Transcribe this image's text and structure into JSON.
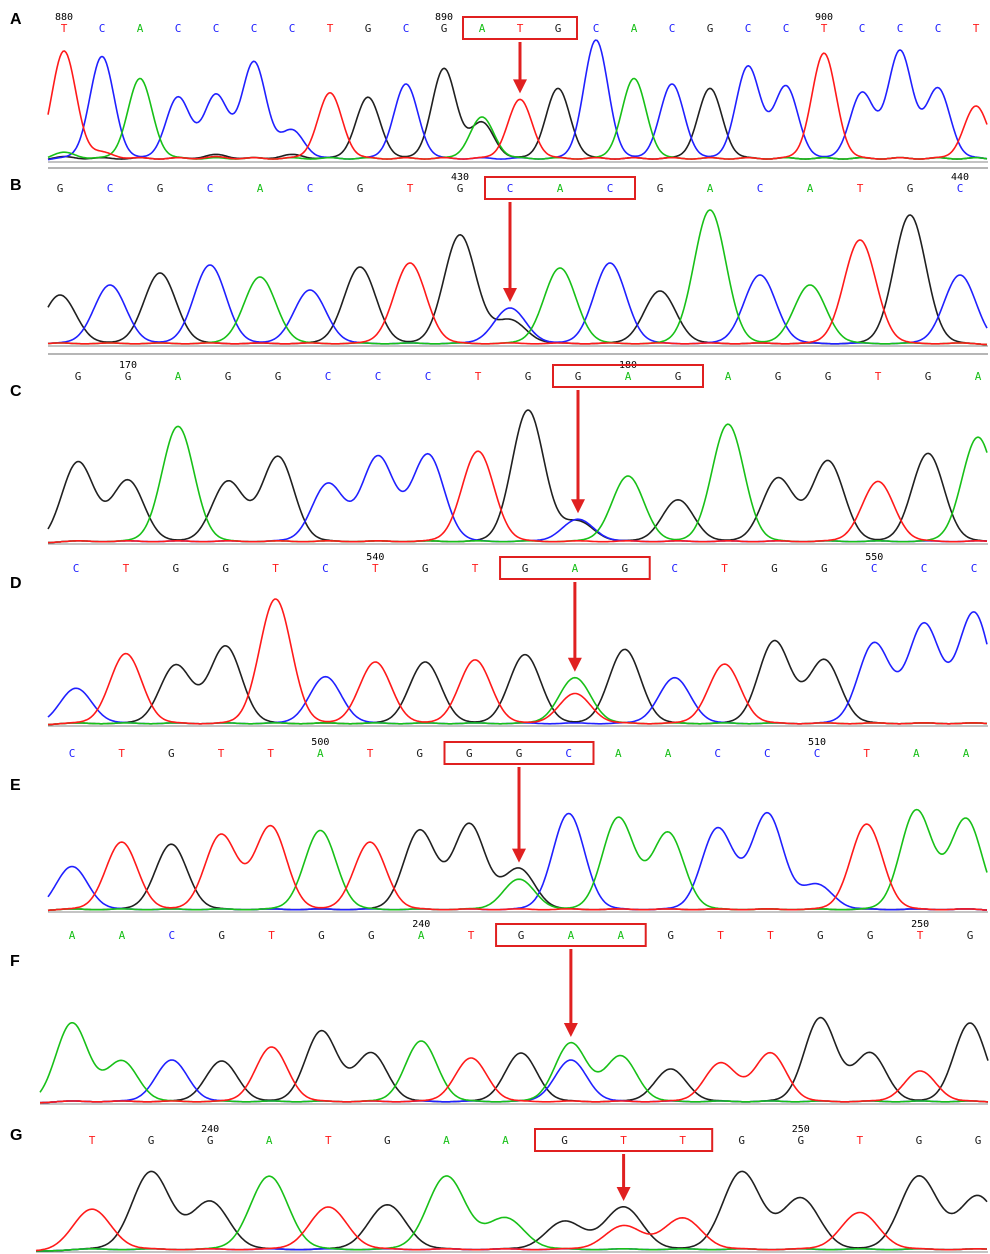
{
  "colors": {
    "A": "#18c018",
    "C": "#2020ff",
    "G": "#202020",
    "T": "#ff1a1a",
    "box": "#e02020",
    "baseline": "#8a8a8a"
  },
  "panels": [
    {
      "letter": "A",
      "bases": [
        "T",
        "C",
        "A",
        "C",
        "C",
        "C",
        "C",
        "T",
        "G",
        "C",
        "G",
        "A",
        "T",
        "G",
        "C",
        "A",
        "C",
        "G",
        "C",
        "C",
        "T",
        "C",
        "C",
        "C",
        "T"
      ],
      "positions": [
        {
          "label": "880",
          "index": 0
        },
        {
          "label": "890",
          "index": 10
        },
        {
          "label": "900",
          "index": 20
        }
      ],
      "highlight": [
        11,
        13
      ],
      "arrow_index": 12,
      "peaks": [
        {
          "A": 0.08,
          "C": 0.03,
          "G": 0.04,
          "T": 1.0
        },
        {
          "A": 0.03,
          "C": 0.95,
          "G": 0.03,
          "T": 0.08
        },
        {
          "A": 0.75,
          "C": 0.03,
          "G": 0.03,
          "T": 0.03
        },
        {
          "A": 0.03,
          "C": 0.58,
          "G": 0.03,
          "T": 0.03
        },
        {
          "A": 0.03,
          "C": 0.6,
          "G": 0.06,
          "T": 0.04
        },
        {
          "A": 0.03,
          "C": 0.9,
          "G": 0.03,
          "T": 0.03
        },
        {
          "A": 0.03,
          "C": 0.28,
          "G": 0.06,
          "T": 0.03
        },
        {
          "A": 0.03,
          "C": 0.03,
          "G": 0.03,
          "T": 0.62
        },
        {
          "A": 0.03,
          "C": 0.03,
          "G": 0.58,
          "T": 0.03
        },
        {
          "A": 0.03,
          "C": 0.7,
          "G": 0.03,
          "T": 0.03
        },
        {
          "A": 0.03,
          "C": 0.03,
          "G": 0.84,
          "T": 0.03
        },
        {
          "A": 0.4,
          "C": 0.03,
          "G": 0.35,
          "T": 0.03
        },
        {
          "A": 0.03,
          "C": 0.03,
          "G": 0.03,
          "T": 0.56
        },
        {
          "A": 0.03,
          "C": 0.03,
          "G": 0.66,
          "T": 0.03
        },
        {
          "A": 0.03,
          "C": 1.1,
          "G": 0.03,
          "T": 0.03
        },
        {
          "A": 0.75,
          "C": 0.03,
          "G": 0.03,
          "T": 0.03
        },
        {
          "A": 0.03,
          "C": 0.7,
          "G": 0.03,
          "T": 0.03
        },
        {
          "A": 0.03,
          "C": 0.03,
          "G": 0.66,
          "T": 0.03
        },
        {
          "A": 0.03,
          "C": 0.86,
          "G": 0.03,
          "T": 0.03
        },
        {
          "A": 0.03,
          "C": 0.68,
          "G": 0.03,
          "T": 0.03
        },
        {
          "A": 0.03,
          "C": 0.03,
          "G": 0.03,
          "T": 0.98
        },
        {
          "A": 0.03,
          "C": 0.62,
          "G": 0.03,
          "T": 0.03
        },
        {
          "A": 0.03,
          "C": 1.0,
          "G": 0.03,
          "T": 0.03
        },
        {
          "A": 0.03,
          "C": 0.66,
          "G": 0.03,
          "T": 0.03
        },
        {
          "A": 0.03,
          "C": 0.03,
          "G": 0.03,
          "T": 0.5
        }
      ]
    },
    {
      "letter": "B",
      "bases": [
        "G",
        "C",
        "G",
        "C",
        "A",
        "C",
        "G",
        "T",
        "G",
        "C",
        "A",
        "C",
        "G",
        "A",
        "C",
        "A",
        "T",
        "G",
        "C"
      ],
      "positions": [
        {
          "label": "430",
          "index": 8
        },
        {
          "label": "440",
          "index": 18
        }
      ],
      "highlight": [
        9,
        11
      ],
      "arrow_index": 9,
      "peaks": [
        {
          "A": 0.02,
          "C": 0.02,
          "G": 0.5,
          "T": 0.02
        },
        {
          "A": 0.02,
          "C": 0.6,
          "G": 0.02,
          "T": 0.02
        },
        {
          "A": 0.02,
          "C": 0.02,
          "G": 0.72,
          "T": 0.02
        },
        {
          "A": 0.02,
          "C": 0.8,
          "G": 0.02,
          "T": 0.02
        },
        {
          "A": 0.68,
          "C": 0.02,
          "G": 0.02,
          "T": 0.02
        },
        {
          "A": 0.02,
          "C": 0.55,
          "G": 0.02,
          "T": 0.02
        },
        {
          "A": 0.02,
          "C": 0.02,
          "G": 0.78,
          "T": 0.02
        },
        {
          "A": 0.02,
          "C": 0.02,
          "G": 0.02,
          "T": 0.82
        },
        {
          "A": 0.02,
          "C": 0.02,
          "G": 1.1,
          "T": 0.02
        },
        {
          "A": 0.02,
          "C": 0.37,
          "G": 0.25,
          "T": 0.02
        },
        {
          "A": 0.77,
          "C": 0.02,
          "G": 0.02,
          "T": 0.02
        },
        {
          "A": 0.02,
          "C": 0.82,
          "G": 0.02,
          "T": 0.02
        },
        {
          "A": 0.02,
          "C": 0.02,
          "G": 0.54,
          "T": 0.02
        },
        {
          "A": 1.35,
          "C": 0.02,
          "G": 0.02,
          "T": 0.02
        },
        {
          "A": 0.02,
          "C": 0.7,
          "G": 0.02,
          "T": 0.02
        },
        {
          "A": 0.6,
          "C": 0.02,
          "G": 0.02,
          "T": 0.02
        },
        {
          "A": 0.02,
          "C": 0.02,
          "G": 0.02,
          "T": 1.05
        },
        {
          "A": 0.02,
          "C": 0.02,
          "G": 1.3,
          "T": 0.02
        },
        {
          "A": 0.02,
          "C": 0.7,
          "G": 0.02,
          "T": 0.02
        }
      ]
    },
    {
      "letter": "C",
      "bases": [
        "G",
        "G",
        "A",
        "G",
        "G",
        "C",
        "C",
        "C",
        "T",
        "G",
        "G",
        "A",
        "G",
        "A",
        "G",
        "G",
        "T",
        "G",
        "A"
      ],
      "positions": [
        {
          "label": "170",
          "index": 1
        },
        {
          "label": "180",
          "index": 11
        }
      ],
      "highlight": [
        10,
        12
      ],
      "arrow_index": 10,
      "peaks": [
        {
          "A": 0.02,
          "C": 0.02,
          "G": 0.75,
          "T": 0.02
        },
        {
          "A": 0.02,
          "C": 0.02,
          "G": 0.58,
          "T": 0.02
        },
        {
          "A": 1.08,
          "C": 0.02,
          "G": 0.02,
          "T": 0.02
        },
        {
          "A": 0.02,
          "C": 0.02,
          "G": 0.57,
          "T": 0.02
        },
        {
          "A": 0.02,
          "C": 0.02,
          "G": 0.8,
          "T": 0.02
        },
        {
          "A": 0.02,
          "C": 0.55,
          "G": 0.02,
          "T": 0.02
        },
        {
          "A": 0.02,
          "C": 0.8,
          "G": 0.02,
          "T": 0.02
        },
        {
          "A": 0.02,
          "C": 0.82,
          "G": 0.02,
          "T": 0.02
        },
        {
          "A": 0.02,
          "C": 0.02,
          "G": 0.02,
          "T": 0.85
        },
        {
          "A": 0.02,
          "C": 0.02,
          "G": 1.23,
          "T": 0.02
        },
        {
          "A": 0.02,
          "C": 0.22,
          "G": 0.2,
          "T": 0.02
        },
        {
          "A": 0.62,
          "C": 0.02,
          "G": 0.02,
          "T": 0.02
        },
        {
          "A": 0.02,
          "C": 0.02,
          "G": 0.4,
          "T": 0.02
        },
        {
          "A": 1.1,
          "C": 0.02,
          "G": 0.02,
          "T": 0.02
        },
        {
          "A": 0.02,
          "C": 0.02,
          "G": 0.6,
          "T": 0.02
        },
        {
          "A": 0.02,
          "C": 0.02,
          "G": 0.76,
          "T": 0.02
        },
        {
          "A": 0.02,
          "C": 0.02,
          "G": 0.02,
          "T": 0.57
        },
        {
          "A": 0.02,
          "C": 0.02,
          "G": 0.83,
          "T": 0.02
        },
        {
          "A": 0.98,
          "C": 0.02,
          "G": 0.02,
          "T": 0.02
        }
      ]
    },
    {
      "letter": "D",
      "bases": [
        "C",
        "T",
        "G",
        "G",
        "T",
        "C",
        "T",
        "G",
        "T",
        "G",
        "A",
        "G",
        "C",
        "T",
        "G",
        "G",
        "C",
        "C",
        "C"
      ],
      "positions": [
        {
          "label": "540",
          "index": 6
        },
        {
          "label": "550",
          "index": 16
        }
      ],
      "highlight": [
        9,
        11
      ],
      "arrow_index": 10,
      "peaks": [
        {
          "A": 0.02,
          "C": 0.35,
          "G": 0.02,
          "T": 0.02
        },
        {
          "A": 0.02,
          "C": 0.02,
          "G": 0.02,
          "T": 0.68
        },
        {
          "A": 0.02,
          "C": 0.02,
          "G": 0.57,
          "T": 0.02
        },
        {
          "A": 0.02,
          "C": 0.02,
          "G": 0.75,
          "T": 0.02
        },
        {
          "A": 0.02,
          "C": 0.02,
          "G": 0.02,
          "T": 1.2
        },
        {
          "A": 0.02,
          "C": 0.46,
          "G": 0.02,
          "T": 0.02
        },
        {
          "A": 0.02,
          "C": 0.02,
          "G": 0.02,
          "T": 0.6
        },
        {
          "A": 0.02,
          "C": 0.02,
          "G": 0.6,
          "T": 0.02
        },
        {
          "A": 0.02,
          "C": 0.02,
          "G": 0.02,
          "T": 0.62
        },
        {
          "A": 0.02,
          "C": 0.02,
          "G": 0.67,
          "T": 0.02
        },
        {
          "A": 0.45,
          "C": 0.02,
          "G": 0.02,
          "T": 0.3
        },
        {
          "A": 0.02,
          "C": 0.02,
          "G": 0.72,
          "T": 0.02
        },
        {
          "A": 0.02,
          "C": 0.45,
          "G": 0.02,
          "T": 0.02
        },
        {
          "A": 0.02,
          "C": 0.02,
          "G": 0.02,
          "T": 0.58
        },
        {
          "A": 0.02,
          "C": 0.02,
          "G": 0.8,
          "T": 0.02
        },
        {
          "A": 0.02,
          "C": 0.02,
          "G": 0.62,
          "T": 0.02
        },
        {
          "A": 0.02,
          "C": 0.78,
          "G": 0.02,
          "T": 0.02
        },
        {
          "A": 0.02,
          "C": 0.96,
          "G": 0.02,
          "T": 0.02
        },
        {
          "A": 0.02,
          "C": 1.07,
          "G": 0.02,
          "T": 0.02
        }
      ]
    },
    {
      "letter": "E",
      "bases": [
        "C",
        "T",
        "G",
        "T",
        "T",
        "A",
        "T",
        "G",
        "G",
        "G",
        "C",
        "A",
        "A",
        "C",
        "C",
        "C",
        "T",
        "A",
        "A"
      ],
      "positions": [
        {
          "label": "500",
          "index": 5
        },
        {
          "label": "510",
          "index": 15
        }
      ],
      "highlight": [
        8,
        10
      ],
      "arrow_index": 9,
      "peaks": [
        {
          "A": 0.02,
          "C": 0.42,
          "G": 0.02,
          "T": 0.02
        },
        {
          "A": 0.02,
          "C": 0.02,
          "G": 0.02,
          "T": 0.65
        },
        {
          "A": 0.02,
          "C": 0.02,
          "G": 0.63,
          "T": 0.02
        },
        {
          "A": 0.02,
          "C": 0.02,
          "G": 0.02,
          "T": 0.72
        },
        {
          "A": 0.02,
          "C": 0.02,
          "G": 0.02,
          "T": 0.8
        },
        {
          "A": 0.76,
          "C": 0.02,
          "G": 0.02,
          "T": 0.02
        },
        {
          "A": 0.02,
          "C": 0.02,
          "G": 0.02,
          "T": 0.65
        },
        {
          "A": 0.02,
          "C": 0.02,
          "G": 0.76,
          "T": 0.02
        },
        {
          "A": 0.02,
          "C": 0.02,
          "G": 0.82,
          "T": 0.02
        },
        {
          "A": 0.3,
          "C": 0.02,
          "G": 0.4,
          "T": 0.02
        },
        {
          "A": 0.02,
          "C": 0.92,
          "G": 0.02,
          "T": 0.02
        },
        {
          "A": 0.88,
          "C": 0.02,
          "G": 0.02,
          "T": 0.02
        },
        {
          "A": 0.74,
          "C": 0.02,
          "G": 0.02,
          "T": 0.02
        },
        {
          "A": 0.02,
          "C": 0.78,
          "G": 0.02,
          "T": 0.02
        },
        {
          "A": 0.02,
          "C": 0.92,
          "G": 0.02,
          "T": 0.02
        },
        {
          "A": 0.02,
          "C": 0.25,
          "G": 0.02,
          "T": 0.02
        },
        {
          "A": 0.02,
          "C": 0.02,
          "G": 0.02,
          "T": 0.82
        },
        {
          "A": 0.95,
          "C": 0.02,
          "G": 0.02,
          "T": 0.02
        },
        {
          "A": 0.87,
          "C": 0.02,
          "G": 0.02,
          "T": 0.02
        }
      ]
    },
    {
      "letter": "F",
      "bases": [
        "A",
        "A",
        "C",
        "G",
        "T",
        "G",
        "G",
        "A",
        "T",
        "G",
        "A",
        "A",
        "G",
        "T",
        "T",
        "G",
        "G",
        "T",
        "G"
      ],
      "positions": [
        {
          "label": "240",
          "index": 7
        },
        {
          "label": "250",
          "index": 17
        }
      ],
      "highlight": [
        9,
        11
      ],
      "arrow_index": 10,
      "peaks": [
        {
          "A": 0.8,
          "C": 0.02,
          "G": 0.02,
          "T": 0.02
        },
        {
          "A": 0.42,
          "C": 0.02,
          "G": 0.02,
          "T": 0.02
        },
        {
          "A": 0.02,
          "C": 0.43,
          "G": 0.02,
          "T": 0.02
        },
        {
          "A": 0.02,
          "C": 0.02,
          "G": 0.42,
          "T": 0.02
        },
        {
          "A": 0.02,
          "C": 0.02,
          "G": 0.02,
          "T": 0.56
        },
        {
          "A": 0.02,
          "C": 0.02,
          "G": 0.72,
          "T": 0.02
        },
        {
          "A": 0.02,
          "C": 0.02,
          "G": 0.5,
          "T": 0.02
        },
        {
          "A": 0.62,
          "C": 0.02,
          "G": 0.02,
          "T": 0.02
        },
        {
          "A": 0.02,
          "C": 0.02,
          "G": 0.02,
          "T": 0.45
        },
        {
          "A": 0.02,
          "C": 0.02,
          "G": 0.5,
          "T": 0.02
        },
        {
          "A": 0.6,
          "C": 0.43,
          "G": 0.02,
          "T": 0.02
        },
        {
          "A": 0.47,
          "C": 0.02,
          "G": 0.02,
          "T": 0.02
        },
        {
          "A": 0.02,
          "C": 0.02,
          "G": 0.34,
          "T": 0.02
        },
        {
          "A": 0.02,
          "C": 0.02,
          "G": 0.02,
          "T": 0.4
        },
        {
          "A": 0.02,
          "C": 0.02,
          "G": 0.02,
          "T": 0.5
        },
        {
          "A": 0.02,
          "C": 0.02,
          "G": 0.85,
          "T": 0.02
        },
        {
          "A": 0.02,
          "C": 0.02,
          "G": 0.5,
          "T": 0.02
        },
        {
          "A": 0.02,
          "C": 0.02,
          "G": 0.02,
          "T": 0.32
        },
        {
          "A": 0.02,
          "C": 0.02,
          "G": 0.8,
          "T": 0.02
        }
      ]
    },
    {
      "letter": "G",
      "bases": [
        "T",
        "G",
        "G",
        "A",
        "T",
        "G",
        "A",
        "A",
        "G",
        "T",
        "T",
        "G",
        "G",
        "T",
        "G",
        "G"
      ],
      "positions": [
        {
          "label": "240",
          "index": 2
        },
        {
          "label": "250",
          "index": 12
        }
      ],
      "highlight": [
        8,
        10
      ],
      "arrow_index": 9,
      "peaks": [
        {
          "A": 0.02,
          "C": 0.02,
          "G": 0.02,
          "T": 0.38
        },
        {
          "A": 0.02,
          "C": 0.02,
          "G": 0.72,
          "T": 0.02
        },
        {
          "A": 0.02,
          "C": 0.02,
          "G": 0.45,
          "T": 0.02
        },
        {
          "A": 0.68,
          "C": 0.02,
          "G": 0.02,
          "T": 0.02
        },
        {
          "A": 0.02,
          "C": 0.02,
          "G": 0.02,
          "T": 0.4
        },
        {
          "A": 0.02,
          "C": 0.02,
          "G": 0.42,
          "T": 0.02
        },
        {
          "A": 0.68,
          "C": 0.02,
          "G": 0.02,
          "T": 0.02
        },
        {
          "A": 0.3,
          "C": 0.02,
          "G": 0.02,
          "T": 0.02
        },
        {
          "A": 0.02,
          "C": 0.02,
          "G": 0.27,
          "T": 0.02
        },
        {
          "A": 0.02,
          "C": 0.02,
          "G": 0.4,
          "T": 0.23
        },
        {
          "A": 0.02,
          "C": 0.02,
          "G": 0.02,
          "T": 0.3
        },
        {
          "A": 0.02,
          "C": 0.02,
          "G": 0.72,
          "T": 0.02
        },
        {
          "A": 0.02,
          "C": 0.02,
          "G": 0.48,
          "T": 0.02
        },
        {
          "A": 0.02,
          "C": 0.02,
          "G": 0.02,
          "T": 0.35
        },
        {
          "A": 0.02,
          "C": 0.02,
          "G": 0.68,
          "T": 0.02
        },
        {
          "A": 0.02,
          "C": 0.02,
          "G": 0.5,
          "T": 0.02
        }
      ]
    }
  ]
}
